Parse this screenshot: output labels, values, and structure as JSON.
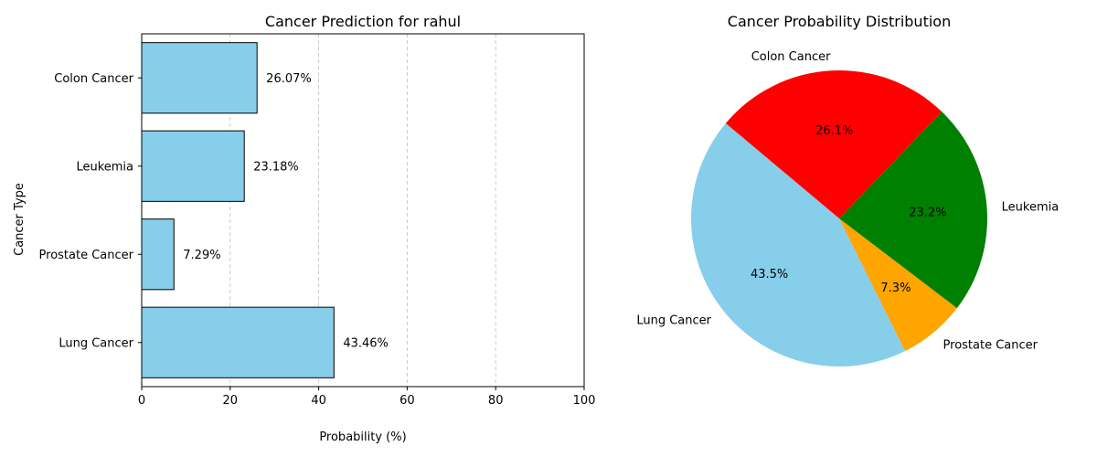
{
  "chart_data": [
    {
      "type": "bar",
      "orientation": "horizontal",
      "title": "Cancer Prediction for rahul",
      "xlabel": "Probability (%)",
      "ylabel": "Cancer Type",
      "categories": [
        "Lung Cancer",
        "Prostate Cancer",
        "Leukemia",
        "Colon Cancer"
      ],
      "values": [
        43.46,
        7.29,
        23.18,
        26.07
      ],
      "value_labels": [
        "43.46%",
        "7.29%",
        "23.18%",
        "26.07%"
      ],
      "xlim": [
        0,
        100
      ],
      "xticks": [
        0,
        20,
        40,
        60,
        80,
        100
      ],
      "grid": "x-dashed",
      "bar_color": "#87ceeb",
      "edge_color": "#000000"
    },
    {
      "type": "pie",
      "title": "Cancer Probability Distribution",
      "slices": [
        {
          "label": "Lung Cancer",
          "value": 43.46,
          "pct_label": "43.5%",
          "color": "#87ceeb"
        },
        {
          "label": "Prostate Cancer",
          "value": 7.29,
          "pct_label": "7.3%",
          "color": "#ffa500"
        },
        {
          "label": "Leukemia",
          "value": 23.18,
          "pct_label": "23.2%",
          "color": "#008000"
        },
        {
          "label": "Colon Cancer",
          "value": 26.07,
          "pct_label": "26.1%",
          "color": "#ff0000"
        }
      ],
      "start_angle": 140
    }
  ]
}
